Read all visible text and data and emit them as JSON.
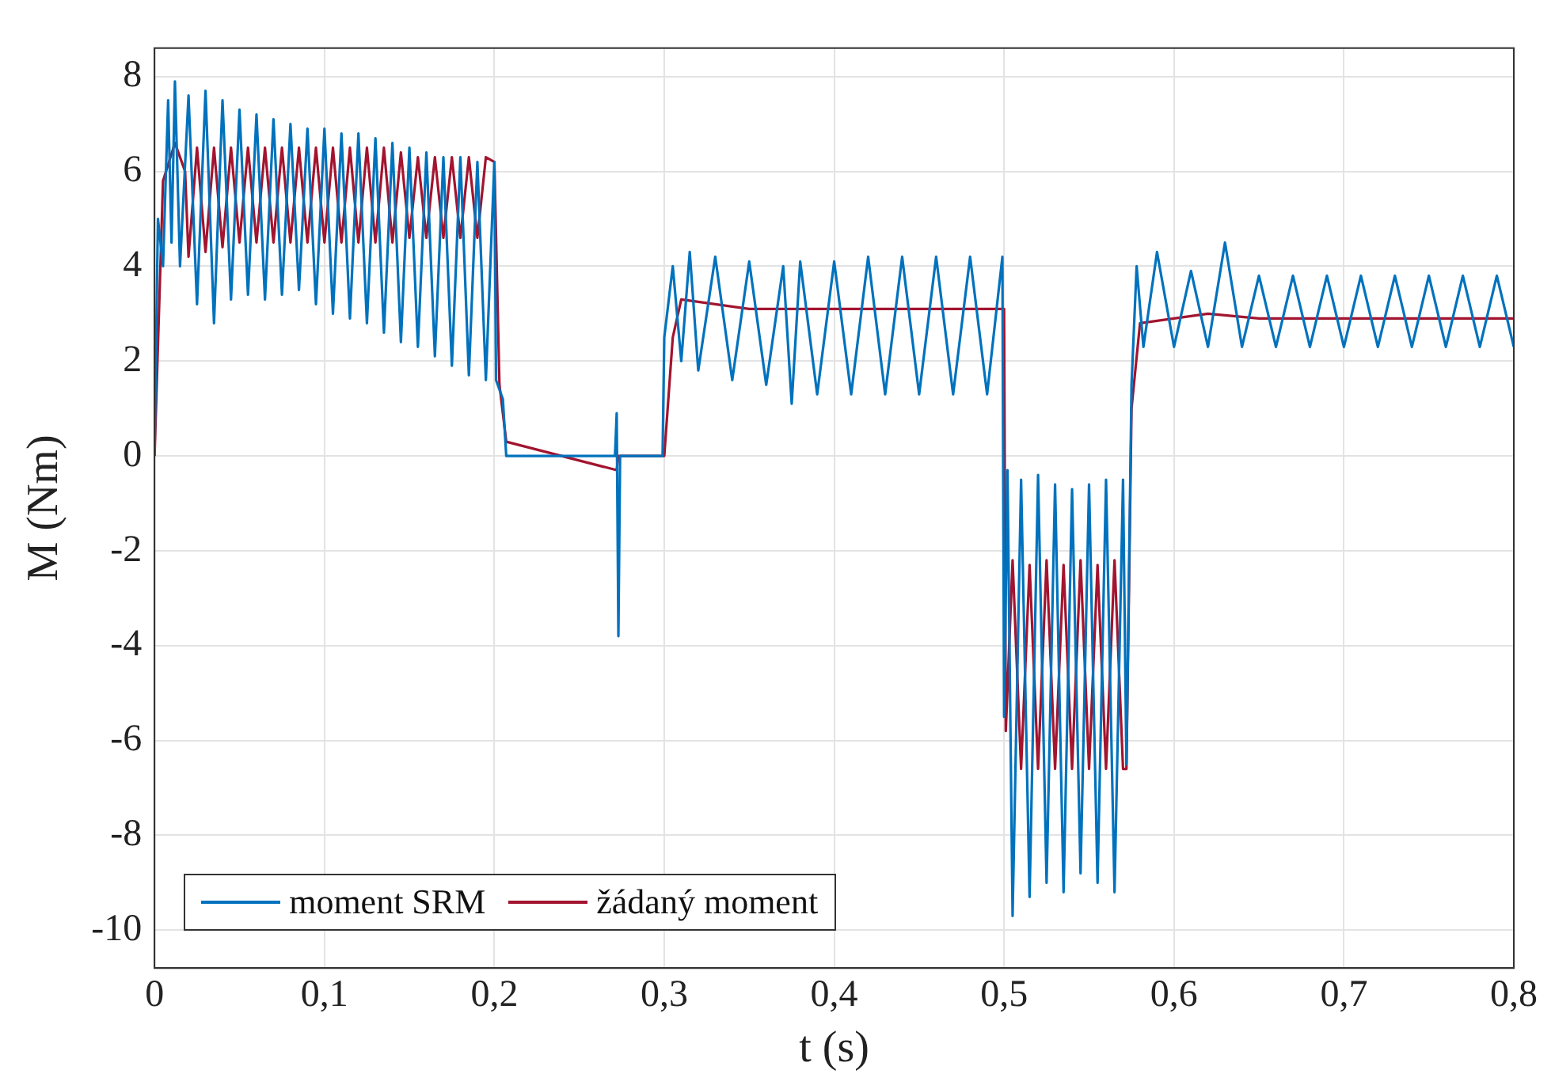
{
  "chart_data": {
    "type": "line",
    "xlabel": "t (s)",
    "ylabel": "M (Nm)",
    "xlim": [
      0,
      0.8
    ],
    "xticks": [
      0,
      {
        "value": 0.1,
        "label": "0,1"
      },
      {
        "value": 0.2,
        "label": "0,2"
      },
      {
        "value": 0.3,
        "label": "0,3"
      },
      {
        "value": 0.4,
        "label": "0,4"
      },
      {
        "value": 0.5,
        "label": "0,5"
      },
      {
        "value": 0.6,
        "label": "0,6"
      },
      {
        "value": 0.7,
        "label": "0,7"
      },
      {
        "value": 0.8,
        "label": "0,8"
      }
    ],
    "ylim": [
      -10.8,
      8.6
    ],
    "yticks": [
      -10,
      -8,
      -6,
      -4,
      -2,
      0,
      2,
      4,
      6,
      8
    ],
    "grid": true,
    "legend": "bottom left",
    "marker": "none",
    "line_style": "solid",
    "series": [
      {
        "name": "moment SRM",
        "color": "#0072bd",
        "x": [
          0,
          0.002,
          0.005,
          0.008,
          0.01,
          0.012,
          0.015,
          0.02,
          0.025,
          0.03,
          0.035,
          0.04,
          0.045,
          0.05,
          0.055,
          0.06,
          0.065,
          0.07,
          0.075,
          0.08,
          0.085,
          0.09,
          0.095,
          0.1,
          0.105,
          0.11,
          0.115,
          0.12,
          0.125,
          0.13,
          0.135,
          0.14,
          0.145,
          0.15,
          0.155,
          0.16,
          0.165,
          0.17,
          0.175,
          0.18,
          0.185,
          0.19,
          0.195,
          0.2,
          0.201,
          0.205,
          0.207,
          0.271,
          0.272,
          0.273,
          0.274,
          0.299,
          0.3,
          0.305,
          0.31,
          0.315,
          0.32,
          0.33,
          0.34,
          0.35,
          0.36,
          0.37,
          0.375,
          0.38,
          0.39,
          0.4,
          0.41,
          0.42,
          0.43,
          0.44,
          0.45,
          0.46,
          0.47,
          0.48,
          0.49,
          0.499,
          0.5,
          0.502,
          0.505,
          0.51,
          0.515,
          0.52,
          0.525,
          0.53,
          0.535,
          0.54,
          0.545,
          0.55,
          0.555,
          0.56,
          0.565,
          0.57,
          0.572,
          0.575,
          0.578,
          0.582,
          0.59,
          0.6,
          0.61,
          0.62,
          0.63,
          0.64,
          0.65,
          0.66,
          0.67,
          0.68,
          0.69,
          0.7,
          0.71,
          0.72,
          0.73,
          0.74,
          0.75,
          0.76,
          0.77,
          0.78,
          0.79,
          0.8
        ],
        "values": [
          0,
          5.0,
          4.0,
          7.5,
          4.5,
          7.9,
          4.0,
          7.6,
          3.2,
          7.7,
          2.8,
          7.5,
          3.3,
          7.3,
          3.4,
          7.2,
          3.3,
          7.1,
          3.4,
          7.0,
          3.5,
          6.9,
          3.2,
          6.9,
          3.0,
          6.8,
          2.9,
          6.8,
          2.8,
          6.7,
          2.6,
          6.6,
          2.4,
          6.5,
          2.3,
          6.4,
          2.1,
          6.3,
          1.9,
          6.3,
          1.7,
          6.2,
          1.6,
          6.2,
          1.6,
          1.2,
          0,
          0,
          0.9,
          -3.8,
          0,
          0,
          2.5,
          4.0,
          2.0,
          4.3,
          1.8,
          4.2,
          1.6,
          4.1,
          1.5,
          4.0,
          1.1,
          4.1,
          1.3,
          4.1,
          1.3,
          4.2,
          1.3,
          4.2,
          1.3,
          4.2,
          1.3,
          4.2,
          1.3,
          4.2,
          -5.5,
          -0.3,
          -9.7,
          -0.5,
          -9.3,
          -0.4,
          -9.0,
          -0.6,
          -9.2,
          -0.7,
          -8.8,
          -0.6,
          -9.0,
          -0.5,
          -9.2,
          -0.5,
          -6.5,
          1.5,
          4.0,
          2.3,
          4.3,
          2.3,
          3.9,
          2.3,
          4.5,
          2.3,
          3.8,
          2.3,
          3.8,
          2.3,
          3.8,
          2.3,
          3.8,
          2.3,
          3.8,
          2.3,
          3.8,
          2.3,
          3.8,
          2.3,
          3.8,
          2.3
        ]
      },
      {
        "name": "žádaný moment",
        "color": "#a2142f",
        "x": [
          0,
          0.005,
          0.012,
          0.018,
          0.02,
          0.025,
          0.03,
          0.035,
          0.04,
          0.045,
          0.05,
          0.055,
          0.06,
          0.065,
          0.07,
          0.075,
          0.08,
          0.085,
          0.09,
          0.095,
          0.1,
          0.105,
          0.11,
          0.115,
          0.12,
          0.125,
          0.13,
          0.135,
          0.14,
          0.145,
          0.15,
          0.155,
          0.16,
          0.165,
          0.17,
          0.175,
          0.18,
          0.185,
          0.19,
          0.195,
          0.2,
          0.203,
          0.207,
          0.272,
          0.273,
          0.3,
          0.305,
          0.31,
          0.35,
          0.4,
          0.45,
          0.5,
          0.501,
          0.505,
          0.51,
          0.515,
          0.52,
          0.525,
          0.53,
          0.535,
          0.54,
          0.545,
          0.55,
          0.555,
          0.56,
          0.565,
          0.57,
          0.572,
          0.575,
          0.58,
          0.6,
          0.62,
          0.65,
          0.8
        ],
        "values": [
          0,
          5.8,
          6.6,
          6.0,
          4.2,
          6.5,
          4.3,
          6.5,
          4.4,
          6.5,
          4.5,
          6.5,
          4.5,
          6.5,
          4.5,
          6.5,
          4.5,
          6.5,
          4.5,
          6.5,
          4.5,
          6.5,
          4.5,
          6.5,
          4.5,
          6.5,
          4.5,
          6.5,
          4.5,
          6.4,
          4.6,
          6.3,
          4.6,
          6.3,
          4.6,
          6.3,
          4.6,
          6.3,
          4.6,
          6.3,
          6.2,
          1.5,
          0.3,
          -0.3,
          0,
          0,
          2.5,
          3.3,
          3.1,
          3.1,
          3.1,
          3.1,
          -5.8,
          -2.2,
          -6.6,
          -2.3,
          -6.6,
          -2.2,
          -6.6,
          -2.3,
          -6.6,
          -2.2,
          -6.6,
          -2.3,
          -6.6,
          -2.2,
          -6.6,
          -6.6,
          1.0,
          2.8,
          2.9,
          3.0,
          2.9,
          2.9
        ]
      }
    ]
  }
}
